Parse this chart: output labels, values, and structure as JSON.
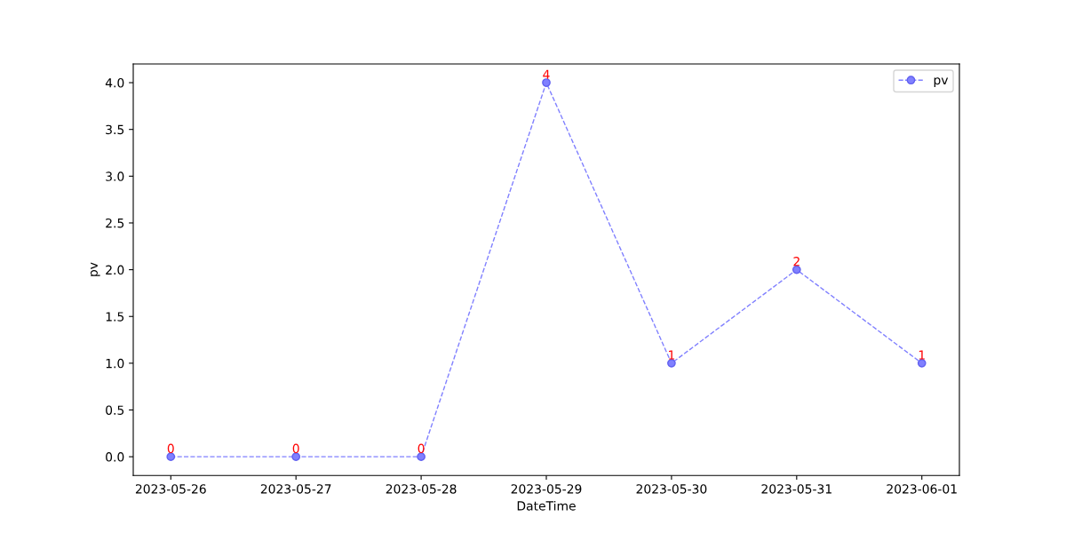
{
  "chart_data": {
    "type": "line",
    "xlabel": "DateTime",
    "ylabel": "pv",
    "categories": [
      "2023-05-26",
      "2023-05-27",
      "2023-05-28",
      "2023-05-29",
      "2023-05-30",
      "2023-05-31",
      "2023-06-01"
    ],
    "series": [
      {
        "name": "pv",
        "color": "#8080ff",
        "values": [
          0,
          0,
          0,
          4,
          1,
          2,
          1
        ]
      }
    ],
    "ylim": [
      -0.2,
      4.2
    ],
    "yticks": [
      {
        "value": 0,
        "label": "0.0"
      },
      {
        "value": 0.5,
        "label": "0.5"
      },
      {
        "value": 1,
        "label": "1.0"
      },
      {
        "value": 1.5,
        "label": "1.5"
      },
      {
        "value": 2,
        "label": "2.0"
      },
      {
        "value": 2.5,
        "label": "2.5"
      },
      {
        "value": 3,
        "label": "3.0"
      },
      {
        "value": 3.5,
        "label": "3.5"
      },
      {
        "value": 4,
        "label": "4.0"
      }
    ],
    "data_labels": true,
    "legend": "upper right",
    "marker": "circle",
    "line_style": "dashed",
    "grid": false
  }
}
